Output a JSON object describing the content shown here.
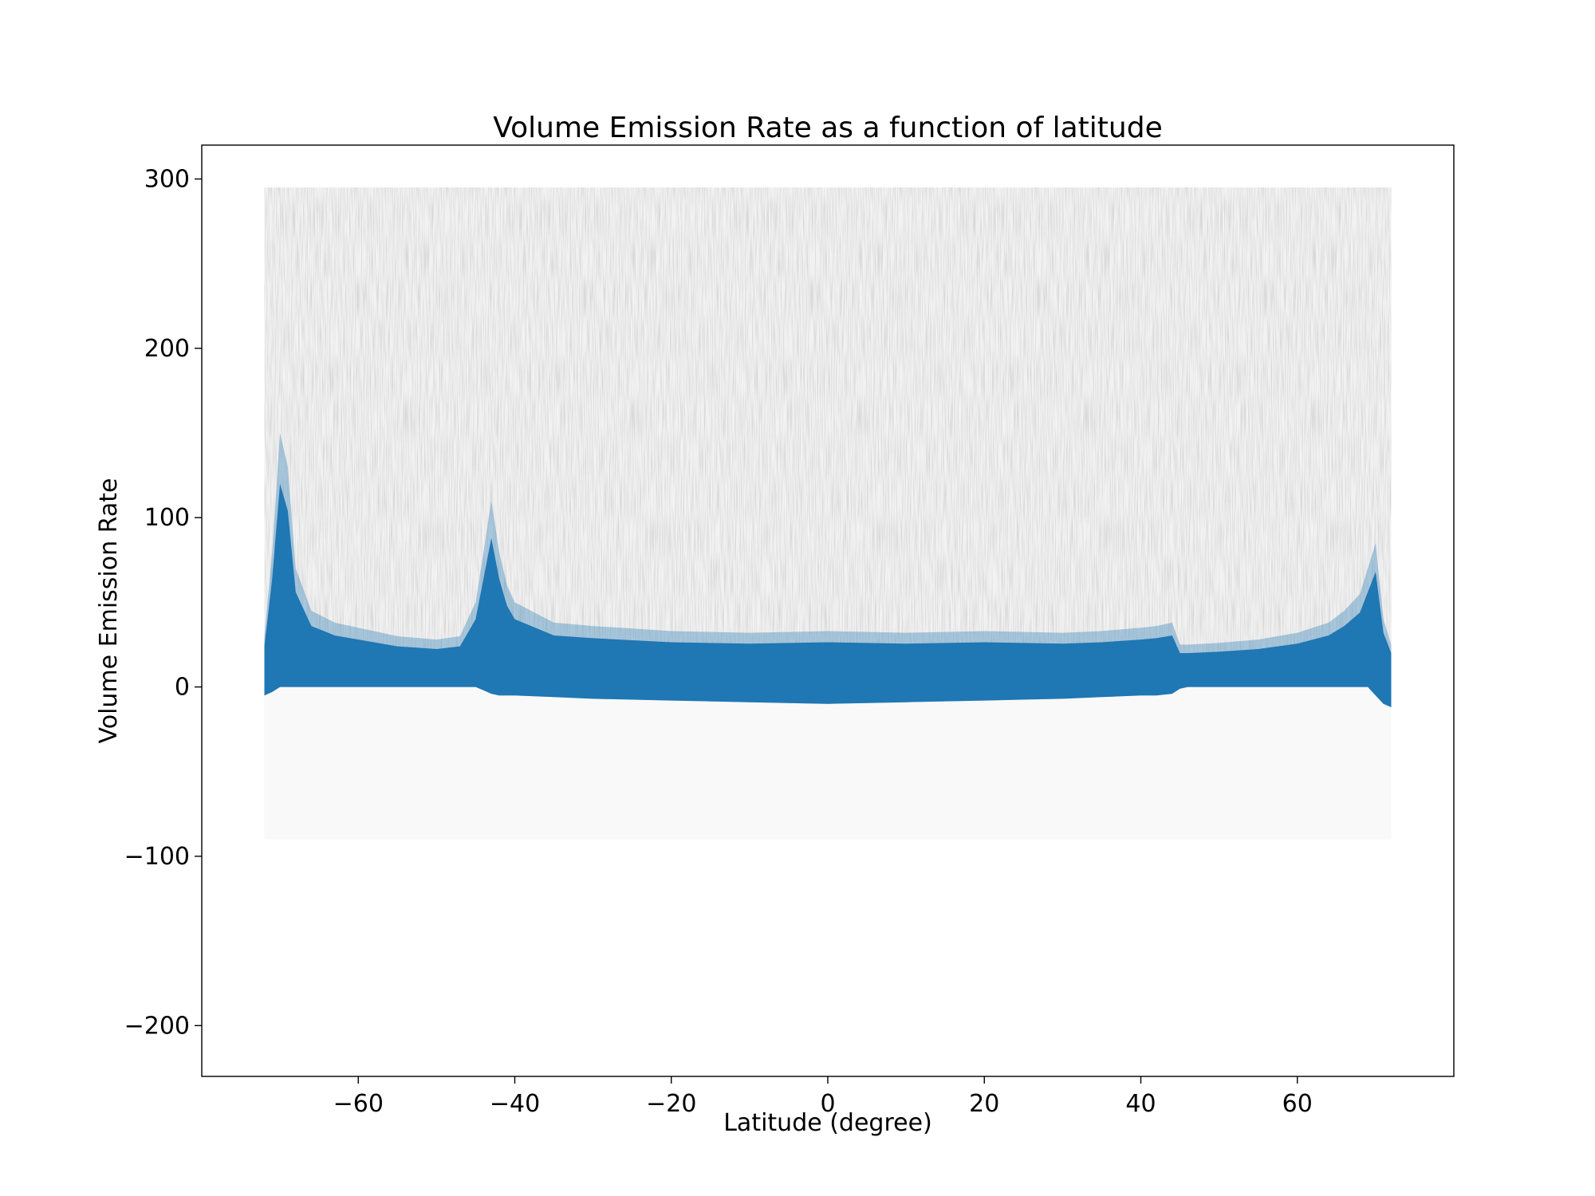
{
  "chart_data": {
    "type": "scatter",
    "title": "Volume Emission Rate as a function of latitude",
    "xlabel": "Latitude (degree)",
    "ylabel": "Volume Emission Rate",
    "xlim": [
      -80,
      80
    ],
    "ylim": [
      -230,
      320
    ],
    "xticks": [
      -60,
      -40,
      -20,
      0,
      20,
      40,
      60
    ],
    "xtick_labels": [
      "−60",
      "−40",
      "−20",
      "0",
      "20",
      "40",
      "60"
    ],
    "yticks": [
      -200,
      -100,
      0,
      100,
      200,
      300
    ],
    "ytick_labels": [
      "−200",
      "−100",
      "0",
      "100",
      "200",
      "300"
    ],
    "grid": false,
    "legend": "none",
    "colors": {
      "dense_points": "#1f77b4",
      "sparse_points": "#808080"
    },
    "series": [
      {
        "label_role": "dense core (blue)",
        "x": [
          -72,
          -71,
          -70,
          -69,
          -68,
          -66,
          -63,
          -60,
          -55,
          -50,
          -47,
          -45,
          -44,
          -43,
          -42,
          -41,
          -40,
          -35,
          -30,
          -20,
          -10,
          0,
          10,
          20,
          30,
          35,
          40,
          42,
          44,
          45,
          46,
          50,
          55,
          60,
          64,
          66,
          68,
          69,
          70,
          71,
          72
        ],
        "y_upper": [
          30,
          80,
          150,
          130,
          70,
          45,
          38,
          35,
          30,
          28,
          30,
          50,
          80,
          110,
          80,
          60,
          50,
          38,
          36,
          33,
          32,
          33,
          32,
          33,
          32,
          33,
          35,
          36,
          38,
          25,
          25,
          26,
          28,
          32,
          38,
          45,
          55,
          70,
          85,
          40,
          25
        ],
        "y_lower": [
          -5,
          -3,
          0,
          0,
          0,
          0,
          0,
          0,
          0,
          0,
          0,
          0,
          -2,
          -4,
          -5,
          -5,
          -5,
          -6,
          -7,
          -8,
          -9,
          -10,
          -9,
          -8,
          -7,
          -6,
          -5,
          -5,
          -4,
          -1,
          0,
          0,
          0,
          0,
          0,
          0,
          0,
          0,
          -5,
          -10,
          -12
        ]
      },
      {
        "label_role": "sparse scatter (grey)",
        "x_range": [
          -72,
          72
        ],
        "y_max": 295,
        "y_min": -90
      }
    ]
  }
}
